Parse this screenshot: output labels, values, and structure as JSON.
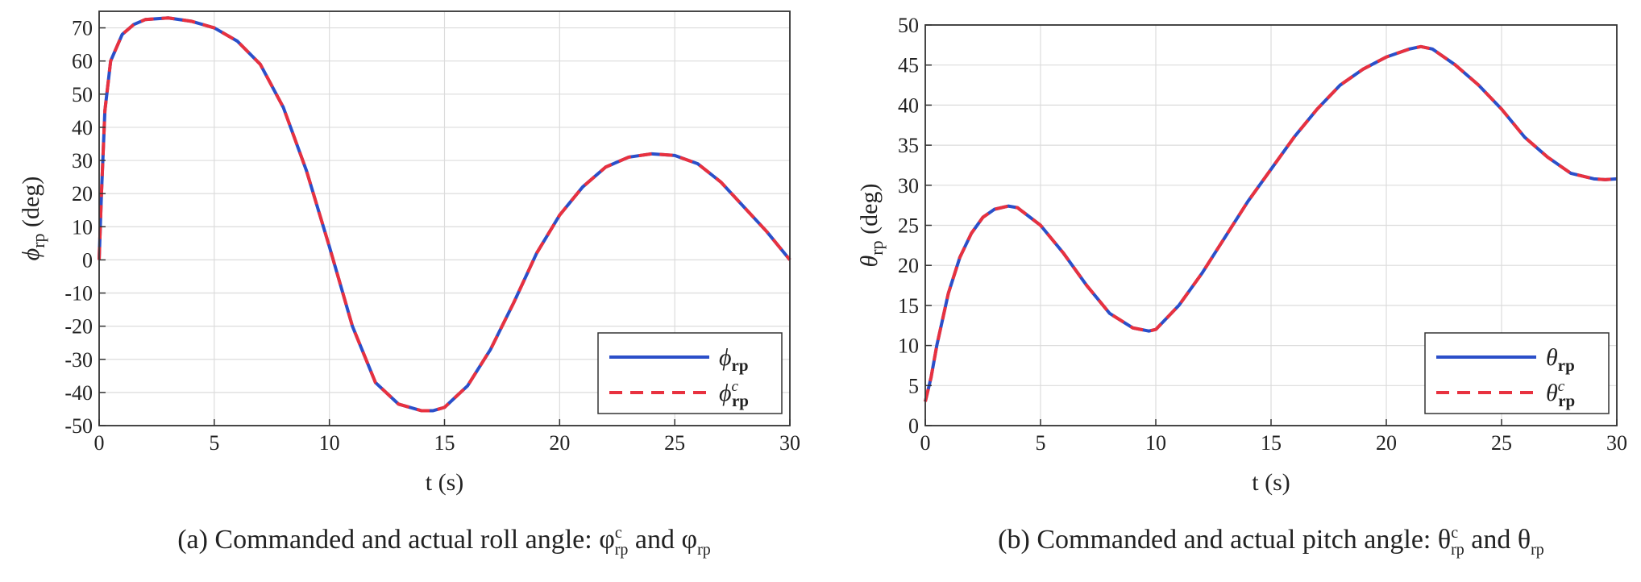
{
  "chart_data": [
    {
      "type": "line",
      "xlabel": "t (s)",
      "ylabel": {
        "symbol": "ϕ",
        "sub": "rp",
        "unit": "(deg)"
      },
      "xlim": [
        0,
        30
      ],
      "ylim": [
        -50,
        75
      ],
      "xticks": [
        0,
        5,
        10,
        15,
        20,
        25,
        30
      ],
      "yticks": [
        -50,
        -40,
        -30,
        -20,
        -10,
        0,
        10,
        20,
        30,
        40,
        50,
        60,
        70
      ],
      "grid": true,
      "legend_position": "bottom-right",
      "caption": {
        "text": "(a)  Commanded and actual roll angle:  ",
        "sym1": "φ",
        "sub1": "rp",
        "sup1": "c",
        "mid": "  and  ",
        "sym2": "φ",
        "sub2": "rp"
      },
      "series": [
        {
          "name": {
            "symbol": "ϕ",
            "sub": "rp",
            "sup": ""
          },
          "color": "#2b4fc9",
          "dash": "solid",
          "x": [
            0,
            0.1,
            0.25,
            0.5,
            1,
            1.5,
            2,
            3,
            4,
            5,
            6,
            7,
            8,
            9,
            10,
            11,
            12,
            13,
            14,
            14.5,
            15,
            16,
            17,
            18,
            19,
            20,
            21,
            22,
            23,
            24,
            25,
            26,
            27,
            28,
            29,
            30
          ],
          "y": [
            0,
            20,
            45,
            60,
            68,
            71,
            72.5,
            73,
            72,
            70,
            66,
            59,
            46,
            27,
            4,
            -20,
            -37,
            -43.5,
            -45.5,
            -45.5,
            -44.5,
            -38,
            -27,
            -13,
            2,
            13.5,
            22,
            28,
            31,
            32,
            31.5,
            29,
            23.5,
            16,
            8.5,
            0
          ]
        },
        {
          "name": {
            "symbol": "ϕ",
            "sub": "rp",
            "sup": "c"
          },
          "color": "#e8313f",
          "dash": "dashed",
          "x": [
            0,
            0.1,
            0.25,
            0.5,
            1,
            1.5,
            2,
            3,
            4,
            5,
            6,
            7,
            8,
            9,
            10,
            11,
            12,
            13,
            14,
            14.5,
            15,
            16,
            17,
            18,
            19,
            20,
            21,
            22,
            23,
            24,
            25,
            26,
            27,
            28,
            29,
            30
          ],
          "y": [
            0,
            20,
            45,
            60,
            68,
            71,
            72.5,
            73,
            72,
            70,
            66,
            59,
            46,
            27,
            4,
            -20,
            -37,
            -43.5,
            -45.5,
            -45.5,
            -44.5,
            -38,
            -27,
            -13,
            2,
            13.5,
            22,
            28,
            31,
            32,
            31.5,
            29,
            23.5,
            16,
            8.5,
            0
          ]
        }
      ]
    },
    {
      "type": "line",
      "xlabel": "t (s)",
      "ylabel": {
        "symbol": "θ",
        "sub": "rp",
        "unit": "(deg)"
      },
      "xlim": [
        0,
        30
      ],
      "ylim": [
        0,
        50
      ],
      "xticks": [
        0,
        5,
        10,
        15,
        20,
        25,
        30
      ],
      "yticks": [
        0,
        5,
        10,
        15,
        20,
        25,
        30,
        35,
        40,
        45,
        50
      ],
      "grid": true,
      "legend_position": "bottom-right",
      "caption": {
        "text": "(b)  Commanded and actual pitch angle:  ",
        "sym1": "θ",
        "sub1": "rp",
        "sup1": "c",
        "mid": "  and  ",
        "sym2": "θ",
        "sub2": "rp"
      },
      "series": [
        {
          "name": {
            "symbol": "θ",
            "sub": "rp",
            "sup": ""
          },
          "color": "#2b4fc9",
          "dash": "solid",
          "x": [
            0,
            0.25,
            0.5,
            1,
            1.5,
            2,
            2.5,
            3,
            3.6,
            4,
            5,
            6,
            7,
            8,
            9,
            9.7,
            10,
            11,
            12,
            13,
            14,
            15,
            16,
            17,
            18,
            19,
            20,
            21,
            21.5,
            22,
            23,
            24,
            25,
            26,
            27,
            28,
            29,
            29.5,
            30
          ],
          "y": [
            3,
            6,
            10,
            16.5,
            21,
            24,
            26,
            27,
            27.4,
            27.2,
            25,
            21.5,
            17.5,
            14,
            12.2,
            11.8,
            12,
            15,
            19,
            23.5,
            28,
            32,
            36,
            39.5,
            42.5,
            44.5,
            46,
            47,
            47.3,
            47,
            45,
            42.5,
            39.5,
            36,
            33.5,
            31.5,
            30.8,
            30.7,
            30.8
          ]
        },
        {
          "name": {
            "symbol": "θ",
            "sub": "rp",
            "sup": "c"
          },
          "color": "#e8313f",
          "dash": "dashed",
          "x": [
            0,
            0.25,
            0.5,
            1,
            1.5,
            2,
            2.5,
            3,
            3.6,
            4,
            5,
            6,
            7,
            8,
            9,
            9.7,
            10,
            11,
            12,
            13,
            14,
            15,
            16,
            17,
            18,
            19,
            20,
            21,
            21.5,
            22,
            23,
            24,
            25,
            26,
            27,
            28,
            29,
            29.5,
            30
          ],
          "y": [
            3,
            6,
            10,
            16.5,
            21,
            24,
            26,
            27,
            27.4,
            27.2,
            25,
            21.5,
            17.5,
            14,
            12.2,
            11.8,
            12,
            15,
            19,
            23.5,
            28,
            32,
            36,
            39.5,
            42.5,
            44.5,
            46,
            47,
            47.3,
            47,
            45,
            42.5,
            39.5,
            36,
            33.5,
            31.5,
            30.8,
            30.7,
            30.8
          ]
        }
      ]
    }
  ]
}
